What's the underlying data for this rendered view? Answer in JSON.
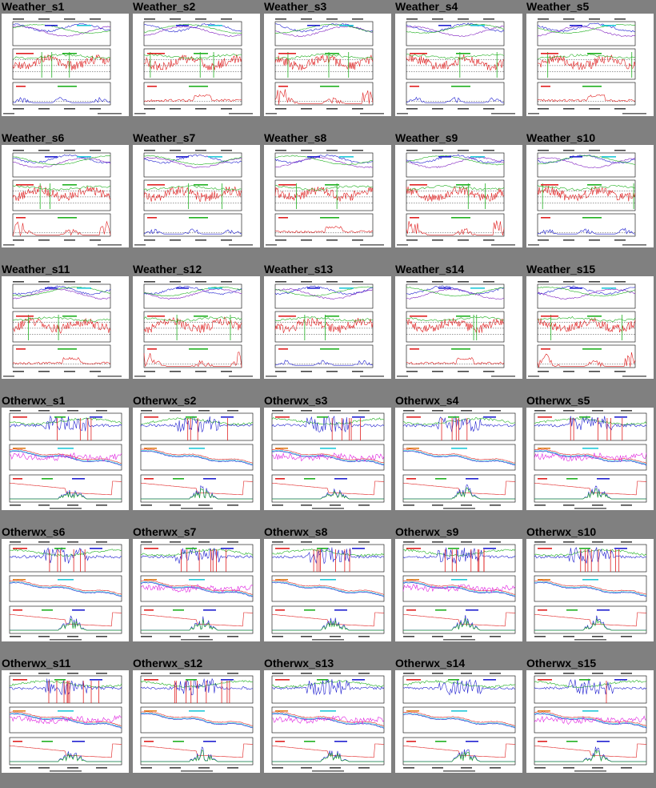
{
  "page": {
    "background": "#808080"
  },
  "rows": [
    {
      "kind": "weather",
      "cells": [
        "Weather_s1",
        "Weather_s2",
        "Weather_s3",
        "Weather_s4",
        "Weather_s5"
      ]
    },
    {
      "kind": "weather",
      "cells": [
        "Weather_s6",
        "Weather_s7",
        "Weather_s8",
        "Weather_s9",
        "Weather_s10"
      ]
    },
    {
      "kind": "weather",
      "cells": [
        "Weather_s11",
        "Weather_s12",
        "Weather_s13",
        "Weather_s14",
        "Weather_s15"
      ]
    },
    {
      "kind": "otherwx",
      "cells": [
        "Otherwx_s1",
        "Otherwx_s2",
        "Otherwx_s3",
        "Otherwx_s4",
        "Otherwx_s5"
      ]
    },
    {
      "kind": "otherwx",
      "cells": [
        "Otherwx_s6",
        "Otherwx_s7",
        "Otherwx_s8",
        "Otherwx_s9",
        "Otherwx_s10"
      ]
    },
    {
      "kind": "otherwx",
      "cells": [
        "Otherwx_s11",
        "Otherwx_s12",
        "Otherwx_s13",
        "Otherwx_s14",
        "Otherwx_s15"
      ]
    }
  ],
  "colors": {
    "red": "#e02020",
    "green": "#20b020",
    "blue": "#2020d0",
    "cyan": "#20c8d8",
    "magenta": "#e020e0",
    "purple": "#8020c0",
    "orange": "#e08020",
    "frame": "#000000"
  },
  "chart_data": {
    "type": "line",
    "layout": "small-multiples",
    "panels_per_thumbnail": 3
  }
}
